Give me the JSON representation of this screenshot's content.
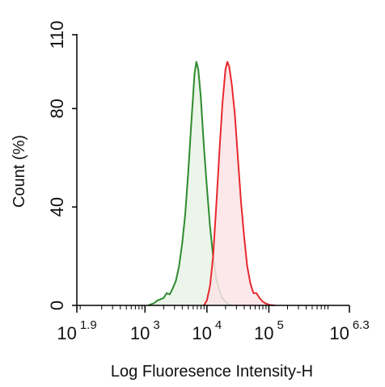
{
  "chart_data": {
    "type": "area",
    "title": "",
    "xlabel": "Log Fluoresence Intensity-H",
    "ylabel": "Count  (%)",
    "x_scale": "log10",
    "xlim": [
      1.9,
      6.3
    ],
    "ylim": [
      0,
      110
    ],
    "x_ticks": [
      {
        "base": "10",
        "exp": "1.9",
        "log": 1.9
      },
      {
        "base": "10",
        "exp": "3",
        "log": 3
      },
      {
        "base": "10",
        "exp": "4",
        "log": 4
      },
      {
        "base": "10",
        "exp": "5",
        "log": 5
      },
      {
        "base": "10",
        "exp": "6.3",
        "log": 6.3
      }
    ],
    "y_ticks": [
      "0",
      "40",
      "80",
      "110"
    ],
    "y_tick_values": [
      0,
      40,
      80,
      110
    ],
    "grid": false,
    "legend": "none",
    "series": [
      {
        "color": "#2e8b2e",
        "fill": "#e9f3e6",
        "points": [
          [
            3.05,
            0
          ],
          [
            3.1,
            0.5
          ],
          [
            3.15,
            1
          ],
          [
            3.2,
            2
          ],
          [
            3.25,
            2.5
          ],
          [
            3.3,
            3
          ],
          [
            3.35,
            5
          ],
          [
            3.4,
            4.5
          ],
          [
            3.45,
            7
          ],
          [
            3.5,
            10
          ],
          [
            3.55,
            16
          ],
          [
            3.6,
            25
          ],
          [
            3.65,
            37
          ],
          [
            3.7,
            55
          ],
          [
            3.75,
            75
          ],
          [
            3.8,
            94
          ],
          [
            3.83,
            99
          ],
          [
            3.86,
            96
          ],
          [
            3.9,
            85
          ],
          [
            3.95,
            65
          ],
          [
            4.0,
            48
          ],
          [
            4.05,
            32
          ],
          [
            4.1,
            20
          ],
          [
            4.15,
            11
          ],
          [
            4.2,
            6
          ],
          [
            4.25,
            3
          ],
          [
            4.3,
            1.5
          ],
          [
            4.35,
            0.5
          ],
          [
            4.4,
            0
          ]
        ]
      },
      {
        "color": "#e8282e",
        "fill": "#fbe4e6",
        "points": [
          [
            3.95,
            0
          ],
          [
            4.0,
            2
          ],
          [
            4.05,
            8
          ],
          [
            4.1,
            20
          ],
          [
            4.15,
            40
          ],
          [
            4.2,
            62
          ],
          [
            4.25,
            82
          ],
          [
            4.3,
            96
          ],
          [
            4.33,
            99
          ],
          [
            4.36,
            97
          ],
          [
            4.4,
            90
          ],
          [
            4.45,
            78
          ],
          [
            4.5,
            60
          ],
          [
            4.55,
            42
          ],
          [
            4.6,
            28
          ],
          [
            4.65,
            16
          ],
          [
            4.7,
            9
          ],
          [
            4.75,
            5
          ],
          [
            4.8,
            5
          ],
          [
            4.85,
            3
          ],
          [
            4.9,
            1.5
          ],
          [
            4.95,
            0.8
          ],
          [
            5.0,
            0.3
          ],
          [
            5.05,
            0.1
          ],
          [
            5.1,
            0
          ]
        ]
      }
    ]
  }
}
